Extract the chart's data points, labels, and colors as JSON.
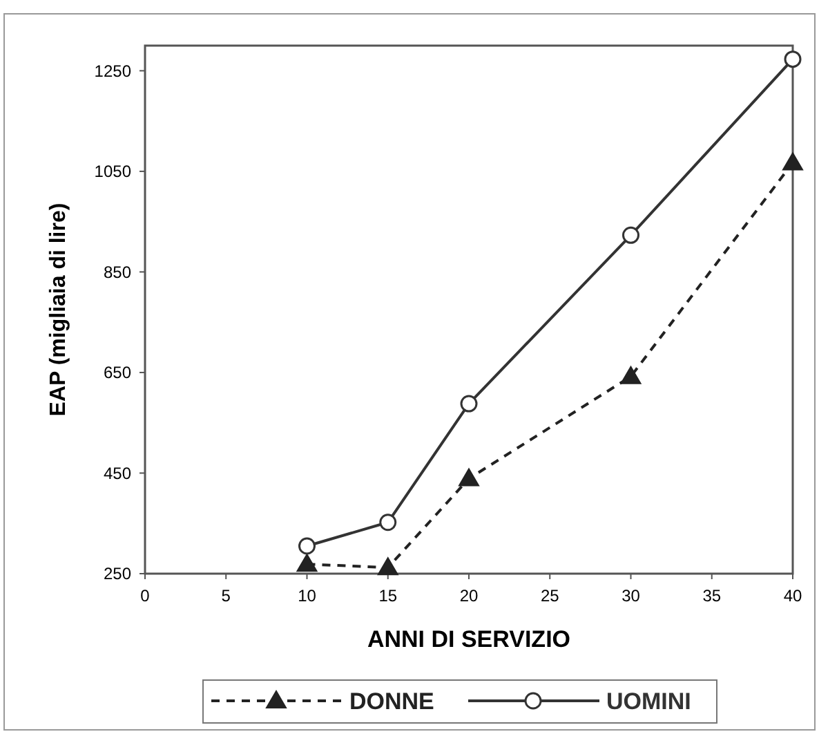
{
  "chart_data": {
    "type": "line",
    "xlabel": "ANNI DI SERVIZIO",
    "ylabel": "EAP (migliaia di lire)",
    "xlim": [
      0,
      40
    ],
    "xticks": [
      0,
      5,
      10,
      15,
      20,
      25,
      30,
      35,
      40
    ],
    "ylim": [
      250,
      1300
    ],
    "yticks": [
      250,
      450,
      650,
      850,
      1050,
      1250
    ],
    "grid": false,
    "legend": "bottom",
    "series": [
      {
        "name": "DONNE",
        "color": "#222222",
        "x": [
          10,
          15,
          20,
          30,
          40
        ],
        "values": [
          269,
          262,
          439,
          642,
          1067
        ],
        "marker": "triangle",
        "line_style": "dashed"
      },
      {
        "name": "UOMINI",
        "color": "#333333",
        "x": [
          10,
          15,
          20,
          30,
          40
        ],
        "values": [
          305,
          352,
          588,
          923,
          1273
        ],
        "marker": "circle",
        "line_style": "solid"
      }
    ]
  }
}
